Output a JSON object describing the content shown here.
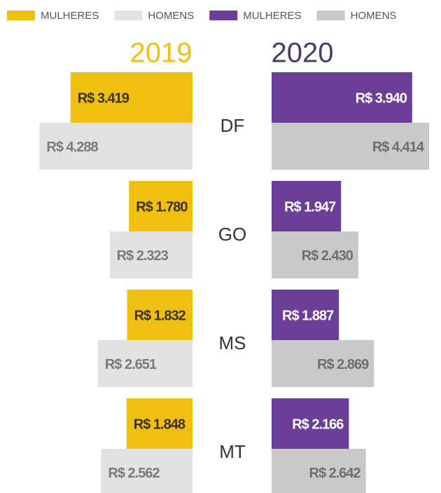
{
  "chart_data": {
    "type": "butterfly",
    "categories": [
      "DF",
      "GO",
      "MS",
      "MT"
    ],
    "panels": [
      {
        "title": "2019",
        "title_color": "#f0c010",
        "side": "left",
        "series": [
          {
            "name": "MULHERES",
            "color": "#f0c010",
            "label_color": "#3b3320",
            "values": [
              3419,
              1780,
              1832,
              1848
            ],
            "value_labels": [
              "R$ 3.419",
              "R$ 1.780",
              "R$ 1.832",
              "R$ 1.848"
            ]
          },
          {
            "name": "HOMENS",
            "color": "#e2e2e2",
            "label_color": "#7a7a7a",
            "values": [
              4288,
              2323,
              2651,
              2562
            ],
            "value_labels": [
              "R$ 4.288",
              "R$ 2.323",
              "R$ 2.651",
              "R$ 2.562"
            ]
          }
        ]
      },
      {
        "title": "2020",
        "title_color": "#4a3a6a",
        "side": "right",
        "series": [
          {
            "name": "MULHERES",
            "color": "#6b3f98",
            "label_color": "#ffffff",
            "values": [
              3940,
              1947,
              1887,
              2166
            ],
            "value_labels": [
              "R$ 3.940",
              "R$ 1.947",
              "R$ 1.887",
              "R$ 2.166"
            ]
          },
          {
            "name": "HOMENS",
            "color": "#c9c9c9",
            "label_color": "#6e6e6e",
            "values": [
              4414,
              2430,
              2869,
              2642
            ],
            "value_labels": [
              "R$ 4.414",
              "R$ 2.430",
              "R$ 2.869",
              "R$ 2.642"
            ]
          }
        ]
      }
    ]
  }
}
